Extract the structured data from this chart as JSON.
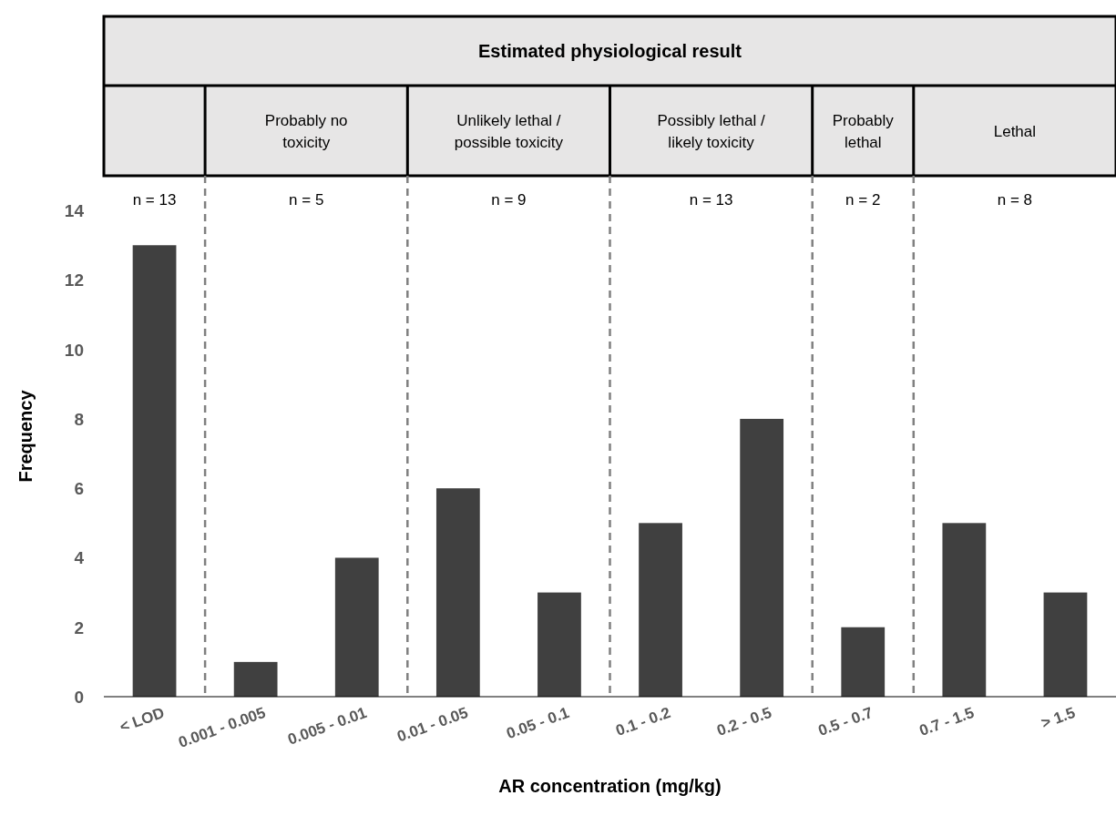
{
  "chart_data": {
    "type": "bar",
    "title": "Estimated physiological result",
    "xlabel": "AR concentration (mg/kg)",
    "ylabel": "Frequency",
    "categories": [
      "< LOD",
      "0.001 - 0.005",
      "0.005 - 0.01",
      "0.01 - 0.05",
      "0.05 - 0.1",
      "0.1 - 0.2",
      "0.2 - 0.5",
      "0.5 - 0.7",
      "0.7 - 1.5",
      "> 1.5"
    ],
    "values": [
      13,
      1,
      4,
      6,
      3,
      5,
      8,
      2,
      5,
      3
    ],
    "color": "#404040",
    "ylim": [
      0,
      15
    ],
    "yticks": [
      0,
      2,
      4,
      6,
      8,
      10,
      12,
      14
    ],
    "grid": false,
    "ref_lines": [
      {
        "axis": "x",
        "value": "0.001 - 0.005",
        "label": null,
        "line_style": "dashed",
        "color": "#808080"
      },
      {
        "axis": "x",
        "value": "0.01 - 0.05",
        "label": null,
        "line_style": "dashed",
        "color": "#808080"
      },
      {
        "axis": "x",
        "value": "0.1 - 0.2",
        "label": null,
        "line_style": "dashed",
        "color": "#808080"
      },
      {
        "axis": "x",
        "value": "0.5 - 0.7",
        "label": null,
        "line_style": "dashed",
        "color": "#808080"
      },
      {
        "axis": "x",
        "value": "0.7 - 1.5",
        "label": null,
        "line_style": "dashed",
        "color": "#808080"
      }
    ],
    "annotations": [
      "Probably no toxicity",
      "Unlikely lethal / possible toxicity",
      "Possibly lethal / likely toxicity",
      "Probably lethal",
      "Lethal",
      "n = 13",
      "n = 5",
      "n = 9",
      "n = 13",
      "n = 2",
      "n = 8"
    ]
  }
}
